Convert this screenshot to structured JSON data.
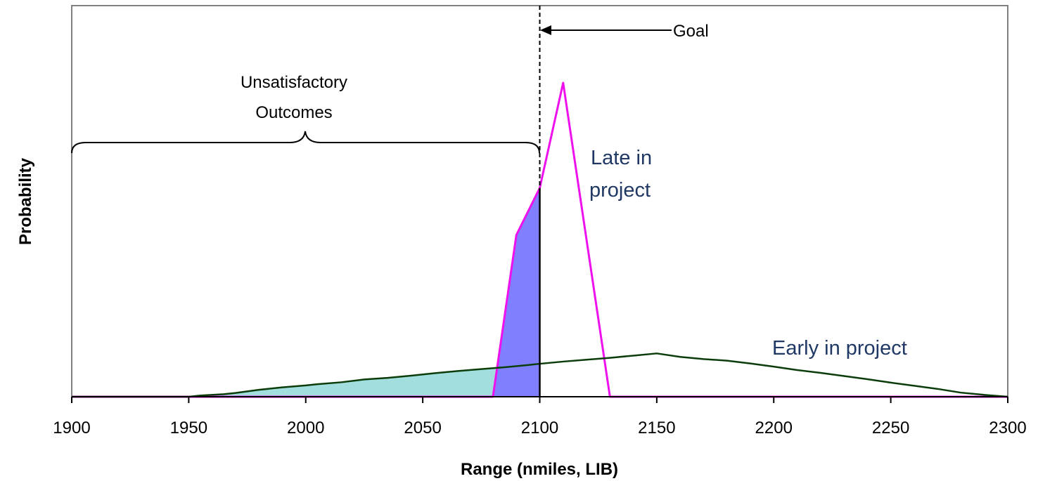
{
  "chart_data": {
    "type": "area",
    "title": "",
    "xlabel": "Range (nmiles, LIB)",
    "ylabel": "Probability",
    "xlim": [
      1900,
      2300
    ],
    "ylim": [
      0,
      1
    ],
    "xticks": [
      "1900",
      "1950",
      "2000",
      "2050",
      "2100",
      "2150",
      "2200",
      "2250",
      "2300"
    ],
    "grid": false,
    "goal_x": 2100,
    "series": [
      {
        "name": "Early in project",
        "color": "#0b3d0b",
        "fill_color": "#a3dede",
        "points": [
          [
            1900,
            0
          ],
          [
            1950,
            0
          ],
          [
            1955,
            0.004
          ],
          [
            1965,
            0.008
          ],
          [
            1970,
            0.012
          ],
          [
            1980,
            0.022
          ],
          [
            1990,
            0.03
          ],
          [
            2000,
            0.036
          ],
          [
            2005,
            0.04
          ],
          [
            2015,
            0.046
          ],
          [
            2025,
            0.055
          ],
          [
            2035,
            0.06
          ],
          [
            2045,
            0.067
          ],
          [
            2055,
            0.075
          ],
          [
            2065,
            0.082
          ],
          [
            2075,
            0.088
          ],
          [
            2085,
            0.094
          ],
          [
            2095,
            0.101
          ],
          [
            2100,
            0.105
          ],
          [
            2110,
            0.112
          ],
          [
            2120,
            0.118
          ],
          [
            2130,
            0.124
          ],
          [
            2140,
            0.131
          ],
          [
            2150,
            0.138
          ],
          [
            2160,
            0.127
          ],
          [
            2170,
            0.12
          ],
          [
            2180,
            0.115
          ],
          [
            2190,
            0.106
          ],
          [
            2200,
            0.096
          ],
          [
            2210,
            0.085
          ],
          [
            2220,
            0.076
          ],
          [
            2230,
            0.066
          ],
          [
            2240,
            0.056
          ],
          [
            2250,
            0.045
          ],
          [
            2260,
            0.035
          ],
          [
            2270,
            0.025
          ],
          [
            2280,
            0.013
          ],
          [
            2290,
            0.006
          ],
          [
            2300,
            0
          ]
        ]
      },
      {
        "name": "Late in project",
        "color": "#ee11ee",
        "fill_color": "#8080ff",
        "points": [
          [
            1900,
            0
          ],
          [
            2080,
            0
          ],
          [
            2090,
            0.515
          ],
          [
            2100,
            0.665
          ],
          [
            2110,
            1.0
          ],
          [
            2130,
            0
          ],
          [
            2300,
            0
          ]
        ]
      }
    ],
    "annotations": [
      {
        "text": "Unsatisfactory",
        "target": "bracket"
      },
      {
        "text": "Outcomes",
        "target": "bracket"
      },
      {
        "text": "Goal",
        "target": "goal-line"
      },
      {
        "text": "Late in",
        "target": "late-series"
      },
      {
        "text": "project",
        "target": "late-series"
      },
      {
        "text": "Early in project",
        "target": "early-series"
      }
    ]
  }
}
